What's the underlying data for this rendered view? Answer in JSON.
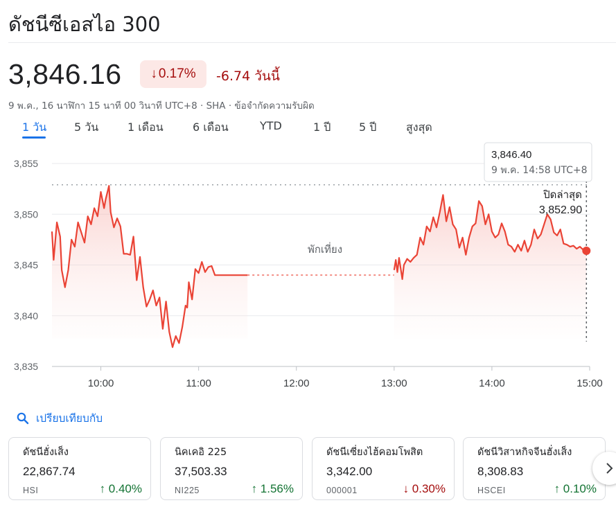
{
  "header": {
    "title": "ดัชนีซีเอสไอ 300",
    "price": "3,846.16",
    "change_pct": "0.17%",
    "change_abs": "-6.74 วันนี้",
    "meta": "9 พ.ค., 16 นาฬิกา 15 นาที 00 วินาที UTC+8 · SHA · ข้อจำกัดความรับผิด",
    "down_arrow": "↓"
  },
  "tabs": [
    {
      "label": "1 วัน",
      "active": true
    },
    {
      "label": "5 วัน",
      "active": false
    },
    {
      "label": "1 เดือน",
      "active": false
    },
    {
      "label": "6 เดือน",
      "active": false
    },
    {
      "label": "YTD",
      "active": false
    },
    {
      "label": "1 ปี",
      "active": false
    },
    {
      "label": "5 ปี",
      "active": false
    },
    {
      "label": "สูงสุด",
      "active": false
    }
  ],
  "colors": {
    "line": "#ea4335",
    "fill": "#fce8e6",
    "down": "#a50e0e",
    "up": "#137333",
    "accent": "#1a73e8"
  },
  "chart_data": {
    "type": "line",
    "x_unit": "time (hours)",
    "x_ticks": [
      "10:00",
      "11:00",
      "12:00",
      "13:00",
      "14:00",
      "15:00"
    ],
    "y_ticks": [
      "3,855",
      "3,850",
      "3,845",
      "3,840",
      "3,835"
    ],
    "ylim": [
      3835,
      3855
    ],
    "xlim": [
      "9:30",
      "15:00"
    ],
    "grid": true,
    "previous_close": 3852.9,
    "previous_close_label": "ปิดล่าสุด",
    "previous_close_value_label": "3,852.90",
    "break_label": "พักเที่ยง",
    "tooltip": {
      "value": "3,846.40",
      "time": "9 พ.ค. 14:58 UTC+8"
    },
    "series": [
      {
        "segment": "morning",
        "x": [
          "9:30",
          "9:31",
          "9:33",
          "9:35",
          "9:36",
          "9:38",
          "9:40",
          "9:42",
          "9:44",
          "9:46",
          "9:48",
          "9:50",
          "9:52",
          "9:54",
          "9:56",
          "9:58",
          "10:00",
          "10:02",
          "10:03",
          "10:05",
          "10:06",
          "10:08",
          "10:10",
          "10:12",
          "10:14",
          "10:16",
          "10:18",
          "10:20",
          "10:22",
          "10:24",
          "10:26",
          "10:28",
          "10:30",
          "10:32",
          "10:34",
          "10:36",
          "10:38",
          "10:40",
          "10:42",
          "10:44",
          "10:46",
          "10:48",
          "10:50",
          "10:52",
          "10:53",
          "10:54",
          "10:56",
          "10:58",
          "11:00",
          "11:02",
          "11:04",
          "11:06",
          "11:08",
          "11:10",
          "11:12",
          "11:14",
          "11:16",
          "11:18",
          "11:20",
          "11:22",
          "11:24",
          "11:26",
          "11:28",
          "11:30"
        ],
        "values": [
          3848.3,
          3845.5,
          3849.2,
          3847.8,
          3844.5,
          3842.8,
          3844.5,
          3847.5,
          3846.8,
          3849.2,
          3848.2,
          3847.2,
          3849.8,
          3849.0,
          3850.6,
          3849.8,
          3852.2,
          3850.6,
          3851.5,
          3852.8,
          3850.2,
          3848.7,
          3849.6,
          3848.8,
          3846.1,
          3846.1,
          3846.0,
          3847.8,
          3843.5,
          3845.8,
          3842.8,
          3840.9,
          3841.6,
          3842.5,
          3841.0,
          3841.8,
          3838.7,
          3841.4,
          3838.4,
          3836.9,
          3838.0,
          3837.3,
          3838.9,
          3841.0,
          3840.8,
          3843.3,
          3841.6,
          3844.6,
          3844.2,
          3845.3,
          3844.3,
          3844.8,
          3844.9,
          3844.0,
          3844.0,
          3844.0,
          3844.0,
          3844.0,
          3844.0,
          3844.0,
          3844.0,
          3844.0,
          3844.0,
          3844.0
        ]
      },
      {
        "segment": "afternoon",
        "x": [
          "13:00",
          "13:01",
          "13:02",
          "13:03",
          "13:04",
          "13:05",
          "13:06",
          "13:08",
          "13:10",
          "13:12",
          "13:14",
          "13:16",
          "13:18",
          "13:20",
          "13:22",
          "13:24",
          "13:26",
          "13:28",
          "13:30",
          "13:32",
          "13:34",
          "13:36",
          "13:38",
          "13:40",
          "13:42",
          "13:44",
          "13:46",
          "13:48",
          "13:50",
          "13:52",
          "13:54",
          "13:56",
          "13:58",
          "14:00",
          "14:02",
          "14:04",
          "14:06",
          "14:08",
          "14:10",
          "14:12",
          "14:14",
          "14:16",
          "14:18",
          "14:20",
          "14:22",
          "14:24",
          "14:26",
          "14:28",
          "14:30",
          "14:32",
          "14:34",
          "14:36",
          "14:38",
          "14:40",
          "14:42",
          "14:44",
          "14:46",
          "14:48",
          "14:50",
          "14:52",
          "14:54",
          "14:56",
          "14:58"
        ],
        "values": [
          3844.5,
          3845.5,
          3844.3,
          3845.7,
          3844.7,
          3843.6,
          3845.0,
          3845.6,
          3845.3,
          3845.7,
          3846.0,
          3847.7,
          3847.0,
          3848.8,
          3848.3,
          3849.7,
          3848.7,
          3850.2,
          3851.9,
          3849.3,
          3850.7,
          3849.0,
          3848.5,
          3846.7,
          3847.7,
          3846.0,
          3847.7,
          3848.8,
          3849.1,
          3851.3,
          3850.8,
          3849.0,
          3850.0,
          3848.3,
          3847.7,
          3848.0,
          3849.1,
          3848.3,
          3847.0,
          3846.8,
          3846.3,
          3847.0,
          3846.4,
          3847.4,
          3846.3,
          3847.0,
          3848.5,
          3847.6,
          3848.0,
          3849.0,
          3850.0,
          3849.5,
          3848.2,
          3847.9,
          3848.5,
          3847.1,
          3847.0,
          3846.8,
          3846.9,
          3846.6,
          3846.8,
          3846.5,
          3846.4
        ]
      }
    ]
  },
  "compare": {
    "label": "เปรียบเทียบกับ"
  },
  "cards": [
    {
      "name": "ดัชนีฮั่งเส็ง",
      "value": "22,867.74",
      "code": "HSI",
      "change": "0.40%",
      "direction": "up",
      "arrow": "↑"
    },
    {
      "name": "นิคเคอิ 225",
      "value": "37,503.33",
      "code": "NI225",
      "change": "1.56%",
      "direction": "up",
      "arrow": "↑"
    },
    {
      "name": "ดัชนีเซี่ยงไฮ้คอมโพสิต",
      "value": "3,342.00",
      "code": "000001",
      "change": "0.30%",
      "direction": "down",
      "arrow": "↓"
    },
    {
      "name": "ดัชนีวิสาหกิจจีนฮั่งเส็ง",
      "value": "8,308.83",
      "code": "HSCEI",
      "change": "0.10%",
      "direction": "up",
      "arrow": "↑"
    }
  ]
}
